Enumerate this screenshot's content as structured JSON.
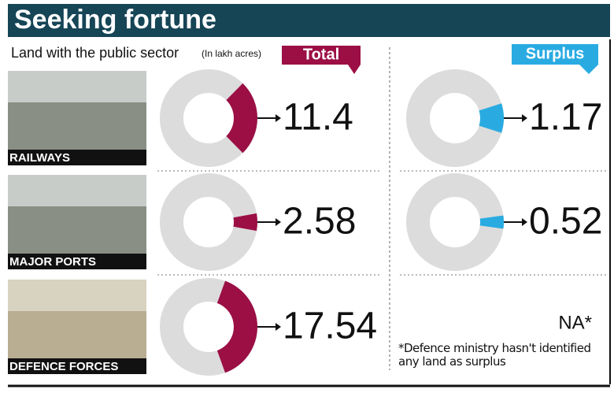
{
  "header": {
    "title": "Seeking fortune",
    "subtitle": "Land with the public sector",
    "unit": "(In lakh acres)"
  },
  "columns": {
    "total": "Total",
    "surplus": "Surplus",
    "total_color": "#9b0f45",
    "surplus_color": "#29abe2"
  },
  "rows": [
    {
      "label": "RAILWAYS",
      "total": 11.4,
      "surplus": 1.17
    },
    {
      "label": "MAJOR PORTS",
      "total": 2.58,
      "surplus": 0.52
    },
    {
      "label": "DEFENCE FORCES",
      "total": 17.54,
      "surplus_label": "NA*"
    }
  ],
  "note": "*Defence ministry hasn't identified any land as surplus"
}
